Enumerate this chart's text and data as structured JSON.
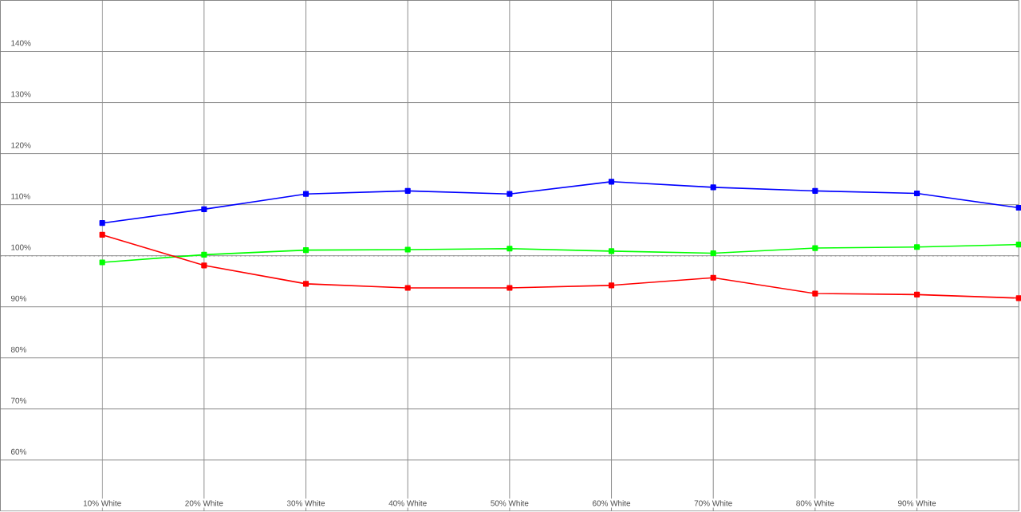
{
  "chart_data": {
    "type": "line",
    "x": [
      10,
      20,
      30,
      40,
      50,
      60,
      70,
      80,
      90,
      100
    ],
    "series": [
      {
        "color": "#0000ff",
        "values": [
          106.4,
          109.1,
          112.1,
          112.7,
          112.1,
          114.5,
          113.4,
          112.7,
          112.2,
          109.4
        ]
      },
      {
        "color": "#00ff00",
        "values": [
          98.7,
          100.2,
          101.1,
          101.2,
          101.4,
          100.9,
          100.5,
          101.5,
          101.7,
          102.2
        ]
      },
      {
        "color": "#ff0000",
        "values": [
          104.1,
          98.1,
          94.5,
          93.7,
          93.7,
          94.2,
          95.7,
          92.6,
          92.4,
          91.7
        ]
      }
    ],
    "xlim": [
      0,
      100
    ],
    "ylim": [
      50,
      150
    ],
    "xticks": [
      {
        "value": 10,
        "label": "10% White"
      },
      {
        "value": 20,
        "label": "20% White"
      },
      {
        "value": 30,
        "label": "30% White"
      },
      {
        "value": 40,
        "label": "40% White"
      },
      {
        "value": 50,
        "label": "50% White"
      },
      {
        "value": 60,
        "label": "60% White"
      },
      {
        "value": 70,
        "label": "70% White"
      },
      {
        "value": 80,
        "label": "80% White"
      },
      {
        "value": 90,
        "label": "90% White"
      }
    ],
    "yticks": [
      {
        "value": 60,
        "label": "60%"
      },
      {
        "value": 70,
        "label": "70%"
      },
      {
        "value": 80,
        "label": "80%"
      },
      {
        "value": 90,
        "label": "90%"
      },
      {
        "value": 100,
        "label": "100%"
      },
      {
        "value": 110,
        "label": "110%"
      },
      {
        "value": 120,
        "label": "120%"
      },
      {
        "value": 130,
        "label": "130%"
      },
      {
        "value": 140,
        "label": "140%"
      }
    ],
    "ref_lines": [
      {
        "axis": "y",
        "value": 100,
        "color": "#999999",
        "line_style": "dotted"
      }
    ],
    "grid": true,
    "marker": "square"
  }
}
